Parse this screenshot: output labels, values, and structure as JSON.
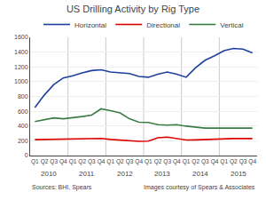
{
  "chart_data": {
    "type": "line",
    "title": "US Drilling Activity by Rig Type",
    "categories": [
      "Q1",
      "Q2",
      "Q3",
      "Q4",
      "Q1",
      "Q2",
      "Q3",
      "Q4",
      "Q1",
      "Q2",
      "Q3",
      "Q4",
      "Q1",
      "Q2",
      "Q3",
      "Q4",
      "Q1",
      "Q2",
      "Q3",
      "Q4",
      "Q1",
      "Q2",
      "Q3",
      "Q4"
    ],
    "category_groups": [
      "2010",
      "2011",
      "2012",
      "2013",
      "2014",
      "2015"
    ],
    "series": [
      {
        "name": "Horizontal",
        "color": "#2040a0",
        "values": [
          650,
          820,
          960,
          1050,
          1080,
          1120,
          1150,
          1160,
          1130,
          1120,
          1110,
          1070,
          1060,
          1100,
          1130,
          1100,
          1060,
          1190,
          1290,
          1350,
          1420,
          1450,
          1440,
          1390
        ]
      },
      {
        "name": "Directional",
        "color": "#dd0000",
        "values": [
          215,
          218,
          220,
          222,
          228,
          232,
          235,
          232,
          218,
          212,
          198,
          192,
          196,
          240,
          250,
          230,
          210,
          212,
          218,
          222,
          228,
          230,
          230,
          230
        ]
      },
      {
        "name": "Vertical",
        "color": "#3a7d44",
        "values": [
          460,
          488,
          510,
          498,
          510,
          528,
          548,
          632,
          608,
          578,
          498,
          452,
          448,
          418,
          412,
          418,
          398,
          382,
          372,
          372,
          372,
          368,
          372,
          372
        ]
      }
    ],
    "ylim": [
      0,
      1600
    ],
    "yticks": [
      0,
      200,
      400,
      600,
      800,
      1000,
      1200,
      1400,
      1600
    ],
    "grid": true,
    "legend": "top",
    "annotations": [
      "Sources: BHI, Spears",
      "Images courtesy of Spears & Associates"
    ]
  }
}
